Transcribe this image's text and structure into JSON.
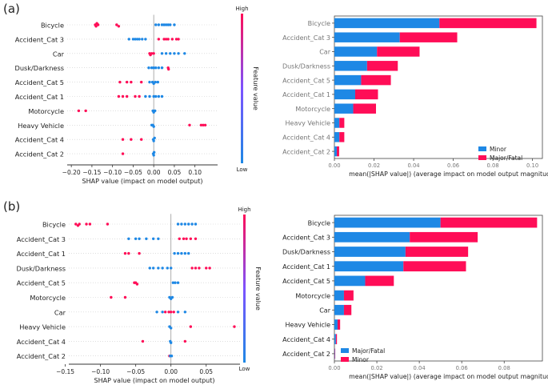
{
  "colors": {
    "blue": "#1E88E5",
    "pink": "#FF0D57",
    "axis": "#333333",
    "grid": "#999999"
  },
  "chart_data": [
    {
      "panel": "(a)",
      "type": "scatter",
      "subtype": "shap-beeswarm",
      "features": [
        "Bicycle",
        "Accident_Cat 3",
        "Car",
        "Dusk/Darkness",
        "Accident_Cat 5",
        "Accident_Cat 1",
        "Motorcycle",
        "Heavy Vehicle",
        "Accident_Cat 4",
        "Accident_Cat 2"
      ],
      "xlabel": "SHAP value (impact on model output)",
      "xlim": [
        -0.21,
        0.155
      ],
      "xticks": [
        -0.2,
        -0.15,
        -0.1,
        -0.05,
        0.0,
        0.05,
        0.1
      ],
      "xtick_labels": [
        "−0.20",
        "−0.15",
        "−0.10",
        "−0.05",
        "0.00",
        "0.05",
        "0.10"
      ],
      "colorbar": {
        "label": "Feature value",
        "high": "High",
        "low": "Low"
      },
      "series": [
        {
          "name": "High",
          "color": "#FF0D57",
          "points": [
            {
              "f": 0,
              "x": -0.142
            },
            {
              "f": 0,
              "x": -0.14
            },
            {
              "f": 0,
              "x": -0.138
            },
            {
              "f": 0,
              "x": -0.135
            },
            {
              "f": 0,
              "x": -0.09
            },
            {
              "f": 0,
              "x": -0.085
            },
            {
              "f": 1,
              "x": 0.012
            },
            {
              "f": 1,
              "x": 0.025
            },
            {
              "f": 1,
              "x": 0.03
            },
            {
              "f": 1,
              "x": 0.035
            },
            {
              "f": 1,
              "x": 0.045
            },
            {
              "f": 1,
              "x": 0.055
            },
            {
              "f": 1,
              "x": 0.06
            },
            {
              "f": 2,
              "x": -0.01
            },
            {
              "f": 2,
              "x": -0.005
            },
            {
              "f": 2,
              "x": 0.0
            },
            {
              "f": 2,
              "x": -0.008
            },
            {
              "f": 3,
              "x": 0.035
            },
            {
              "f": 3,
              "x": 0.036
            },
            {
              "f": 4,
              "x": -0.082
            },
            {
              "f": 4,
              "x": -0.065
            },
            {
              "f": 4,
              "x": -0.055
            },
            {
              "f": 4,
              "x": -0.03
            },
            {
              "f": 5,
              "x": -0.085
            },
            {
              "f": 5,
              "x": -0.075
            },
            {
              "f": 5,
              "x": -0.065
            },
            {
              "f": 5,
              "x": -0.045
            },
            {
              "f": 5,
              "x": -0.035
            },
            {
              "f": 6,
              "x": -0.182
            },
            {
              "f": 6,
              "x": -0.165
            },
            {
              "f": 7,
              "x": 0.087
            },
            {
              "f": 7,
              "x": 0.115
            },
            {
              "f": 7,
              "x": 0.12
            },
            {
              "f": 7,
              "x": 0.125
            },
            {
              "f": 8,
              "x": -0.075
            },
            {
              "f": 8,
              "x": -0.055
            },
            {
              "f": 8,
              "x": -0.03
            },
            {
              "f": 9,
              "x": -0.075
            }
          ]
        },
        {
          "name": "Low",
          "color": "#1E88E5",
          "points": [
            {
              "f": 0,
              "x": 0.005
            },
            {
              "f": 0,
              "x": 0.012
            },
            {
              "f": 0,
              "x": 0.02
            },
            {
              "f": 0,
              "x": 0.025
            },
            {
              "f": 0,
              "x": 0.03
            },
            {
              "f": 0,
              "x": 0.035
            },
            {
              "f": 0,
              "x": 0.04
            },
            {
              "f": 0,
              "x": 0.05
            },
            {
              "f": 1,
              "x": -0.06
            },
            {
              "f": 1,
              "x": -0.05
            },
            {
              "f": 1,
              "x": -0.045
            },
            {
              "f": 1,
              "x": -0.04
            },
            {
              "f": 1,
              "x": -0.035
            },
            {
              "f": 1,
              "x": -0.028
            },
            {
              "f": 1,
              "x": -0.02
            },
            {
              "f": 2,
              "x": 0.02
            },
            {
              "f": 2,
              "x": 0.03
            },
            {
              "f": 2,
              "x": 0.04
            },
            {
              "f": 2,
              "x": 0.05
            },
            {
              "f": 2,
              "x": 0.06
            },
            {
              "f": 2,
              "x": 0.075
            },
            {
              "f": 3,
              "x": -0.012
            },
            {
              "f": 3,
              "x": -0.005
            },
            {
              "f": 3,
              "x": 0.0
            },
            {
              "f": 3,
              "x": 0.005
            },
            {
              "f": 3,
              "x": 0.012
            },
            {
              "f": 3,
              "x": 0.02
            },
            {
              "f": 4,
              "x": -0.01
            },
            {
              "f": 4,
              "x": -0.003
            },
            {
              "f": 4,
              "x": 0.0
            },
            {
              "f": 4,
              "x": 0.004
            },
            {
              "f": 4,
              "x": 0.01
            },
            {
              "f": 5,
              "x": -0.02
            },
            {
              "f": 5,
              "x": -0.01
            },
            {
              "f": 5,
              "x": 0.0
            },
            {
              "f": 5,
              "x": 0.005
            },
            {
              "f": 5,
              "x": 0.012
            },
            {
              "f": 5,
              "x": 0.02
            },
            {
              "f": 6,
              "x": -0.002
            },
            {
              "f": 6,
              "x": 0.0
            },
            {
              "f": 6,
              "x": 0.003
            },
            {
              "f": 7,
              "x": -0.005
            },
            {
              "f": 7,
              "x": -0.002
            },
            {
              "f": 7,
              "x": 0.0
            },
            {
              "f": 8,
              "x": -0.001
            },
            {
              "f": 8,
              "x": 0.0
            },
            {
              "f": 8,
              "x": 0.002
            },
            {
              "f": 9,
              "x": -0.001
            },
            {
              "f": 9,
              "x": 0.0
            },
            {
              "f": 9,
              "x": 0.001
            }
          ]
        }
      ]
    },
    {
      "panel": "(a)",
      "type": "bar",
      "stacked": true,
      "orientation": "horizontal",
      "categories": [
        "Bicycle",
        "Accident_Cat 3",
        "Car",
        "Dusk/Darkness",
        "Accident_Cat 5",
        "Accident_Cat 1",
        "Motorcycle",
        "Heavy Vehicle",
        "Accident_Cat 4",
        "Accident_Cat 2"
      ],
      "series": [
        {
          "name": "Minor",
          "color": "#1E88E5",
          "values": [
            0.053,
            0.033,
            0.0215,
            0.0165,
            0.0135,
            0.0105,
            0.0095,
            0.0025,
            0.0025,
            0.0012
          ]
        },
        {
          "name": "Major/Fatal",
          "color": "#FF0D57",
          "values": [
            0.049,
            0.029,
            0.0215,
            0.0155,
            0.015,
            0.0115,
            0.0115,
            0.0025,
            0.0025,
            0.0012
          ]
        }
      ],
      "xlabel": "mean(|SHAP value|) (average impact on model output magnitude)",
      "xlim": [
        0,
        0.105
      ],
      "xticks": [
        0.0,
        0.02,
        0.04,
        0.06,
        0.08,
        0.1
      ],
      "xtick_labels": [
        "0.00",
        "0.02",
        "0.04",
        "0.06",
        "0.08",
        "0.10"
      ],
      "legend": "bottom-right"
    },
    {
      "panel": "(b)",
      "type": "scatter",
      "subtype": "shap-beeswarm",
      "features": [
        "Bicycle",
        "Accident_Cat 3",
        "Accident_Cat 1",
        "Dusk/Darkness",
        "Accident_Cat 5",
        "Motorcycle",
        "Car",
        "Heavy Vehicle",
        "Accident_Cat 4",
        "Accident_Cat 2"
      ],
      "xlabel": "SHAP value (impact on model output)",
      "xlim": [
        -0.145,
        0.098
      ],
      "xticks": [
        -0.15,
        -0.1,
        -0.05,
        0.0,
        0.05
      ],
      "xtick_labels": [
        "−0.15",
        "−0.10",
        "−0.05",
        "0.00",
        "0.05"
      ],
      "colorbar": {
        "label": "Feature value",
        "high": "High",
        "low": "Low"
      },
      "series": [
        {
          "name": "High",
          "color": "#FF0D57",
          "points": [
            {
              "f": 0,
              "x": -0.135
            },
            {
              "f": 0,
              "x": -0.132
            },
            {
              "f": 0,
              "x": -0.13
            },
            {
              "f": 0,
              "x": -0.12
            },
            {
              "f": 0,
              "x": -0.115
            },
            {
              "f": 0,
              "x": -0.09
            },
            {
              "f": 1,
              "x": 0.012
            },
            {
              "f": 1,
              "x": 0.018
            },
            {
              "f": 1,
              "x": 0.022
            },
            {
              "f": 1,
              "x": 0.028
            },
            {
              "f": 1,
              "x": 0.035
            },
            {
              "f": 2,
              "x": -0.065
            },
            {
              "f": 2,
              "x": -0.06
            },
            {
              "f": 2,
              "x": -0.045
            },
            {
              "f": 3,
              "x": 0.03
            },
            {
              "f": 3,
              "x": 0.035
            },
            {
              "f": 3,
              "x": 0.04
            },
            {
              "f": 3,
              "x": 0.05
            },
            {
              "f": 3,
              "x": 0.055
            },
            {
              "f": 4,
              "x": -0.052
            },
            {
              "f": 4,
              "x": -0.05
            },
            {
              "f": 4,
              "x": -0.048
            },
            {
              "f": 5,
              "x": -0.085
            },
            {
              "f": 5,
              "x": -0.065
            },
            {
              "f": 6,
              "x": -0.008
            },
            {
              "f": 6,
              "x": -0.003
            },
            {
              "f": 6,
              "x": 0.0
            },
            {
              "f": 6,
              "x": 0.004
            },
            {
              "f": 7,
              "x": 0.028
            },
            {
              "f": 7,
              "x": 0.09
            },
            {
              "f": 8,
              "x": -0.04
            },
            {
              "f": 8,
              "x": 0.02
            },
            {
              "f": 9,
              "x": -0.002
            }
          ]
        },
        {
          "name": "Low",
          "color": "#1E88E5",
          "points": [
            {
              "f": 0,
              "x": 0.01
            },
            {
              "f": 0,
              "x": 0.015
            },
            {
              "f": 0,
              "x": 0.02
            },
            {
              "f": 0,
              "x": 0.025
            },
            {
              "f": 0,
              "x": 0.03
            },
            {
              "f": 0,
              "x": 0.035
            },
            {
              "f": 1,
              "x": -0.06
            },
            {
              "f": 1,
              "x": -0.05
            },
            {
              "f": 1,
              "x": -0.045
            },
            {
              "f": 1,
              "x": -0.035
            },
            {
              "f": 1,
              "x": -0.025
            },
            {
              "f": 1,
              "x": -0.018
            },
            {
              "f": 2,
              "x": 0.005
            },
            {
              "f": 2,
              "x": 0.01
            },
            {
              "f": 2,
              "x": 0.015
            },
            {
              "f": 2,
              "x": 0.02
            },
            {
              "f": 2,
              "x": 0.025
            },
            {
              "f": 3,
              "x": -0.03
            },
            {
              "f": 3,
              "x": -0.025
            },
            {
              "f": 3,
              "x": -0.018
            },
            {
              "f": 3,
              "x": -0.012
            },
            {
              "f": 3,
              "x": -0.005
            },
            {
              "f": 3,
              "x": 0.0
            },
            {
              "f": 4,
              "x": 0.003
            },
            {
              "f": 4,
              "x": 0.006
            },
            {
              "f": 4,
              "x": 0.01
            },
            {
              "f": 5,
              "x": -0.002
            },
            {
              "f": 5,
              "x": 0.0
            },
            {
              "f": 5,
              "x": 0.002
            },
            {
              "f": 6,
              "x": -0.02
            },
            {
              "f": 6,
              "x": -0.012
            },
            {
              "f": 6,
              "x": 0.01
            },
            {
              "f": 6,
              "x": 0.02
            },
            {
              "f": 7,
              "x": -0.002
            },
            {
              "f": 7,
              "x": 0.0
            },
            {
              "f": 8,
              "x": -0.001
            },
            {
              "f": 8,
              "x": 0.0
            },
            {
              "f": 9,
              "x": -0.001
            },
            {
              "f": 9,
              "x": 0.001
            }
          ]
        }
      ]
    },
    {
      "panel": "(b)",
      "type": "bar",
      "stacked": true,
      "orientation": "horizontal",
      "categories": [
        "Bicycle",
        "Accident_Cat 3",
        "Dusk/Darkness",
        "Accident_Cat 1",
        "Accident_Cat 5",
        "Motorcycle",
        "Car",
        "Heavy Vehicle",
        "Accident_Cat 4",
        "Accident_Cat 2"
      ],
      "series": [
        {
          "name": "Major/Fatal",
          "color": "#1E88E5",
          "values": [
            0.05,
            0.0355,
            0.0335,
            0.0325,
            0.0145,
            0.0045,
            0.0045,
            0.0015,
            0.0007,
            0.0002
          ]
        },
        {
          "name": "Minor",
          "color": "#FF0D57",
          "values": [
            0.0455,
            0.032,
            0.0295,
            0.0295,
            0.0135,
            0.0045,
            0.0035,
            0.0012,
            0.0005,
            0.0002
          ]
        }
      ],
      "xlabel": "mean(|SHAP value|) (average impact on model output magnitude)",
      "xlim": [
        0,
        0.098
      ],
      "xticks": [
        0.0,
        0.02,
        0.04,
        0.06,
        0.08
      ],
      "xtick_labels": [
        "0.00",
        "0.02",
        "0.04",
        "0.06",
        "0.08"
      ],
      "legend": "bottom-right"
    }
  ],
  "panel_labels": [
    "(a)",
    "(b)"
  ]
}
